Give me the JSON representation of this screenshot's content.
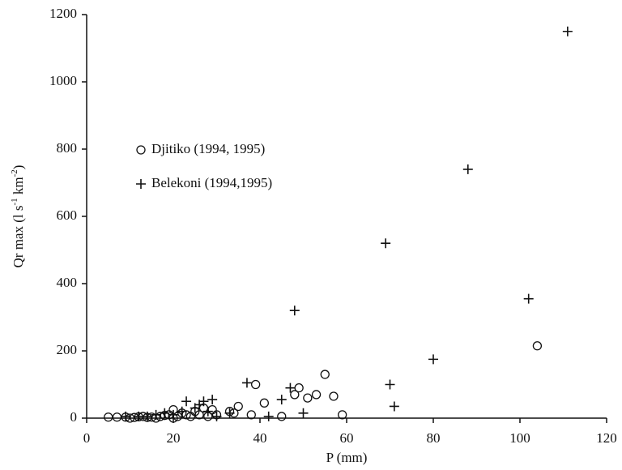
{
  "chart_data": {
    "type": "scatter",
    "xlabel": "P (mm)",
    "ylabel": [
      "Qr max (l s",
      "-1",
      " km",
      "-2",
      ")"
    ],
    "xlim": [
      0,
      120
    ],
    "xticks": [
      0,
      20,
      40,
      60,
      80,
      100,
      120
    ],
    "ylim": [
      0,
      1200
    ],
    "yticks": [
      0,
      200,
      400,
      600,
      800,
      1000,
      1200
    ],
    "series": [
      {
        "name": "Djitiko (1994, 1995)",
        "marker": "circle",
        "color": "#111",
        "x": [
          5,
          7,
          9,
          10,
          11,
          12,
          13,
          14,
          15,
          16,
          17,
          18,
          19,
          20,
          20,
          21,
          22,
          23,
          24,
          25,
          26,
          27,
          28,
          29,
          30,
          33,
          34,
          35,
          38,
          39,
          41,
          45,
          48,
          49,
          51,
          53,
          55,
          57,
          59,
          104
        ],
        "values": [
          3,
          3,
          3,
          0,
          2,
          4,
          5,
          2,
          3,
          0,
          5,
          8,
          10,
          25,
          0,
          5,
          15,
          10,
          5,
          20,
          10,
          30,
          5,
          25,
          10,
          20,
          15,
          35,
          10,
          100,
          45,
          5,
          70,
          90,
          60,
          70,
          130,
          65,
          10,
          215
        ]
      },
      {
        "name": "Belekoni (1994,1995)",
        "marker": "plus",
        "color": "#111",
        "x": [
          9,
          12,
          14,
          16,
          18,
          20,
          22,
          23,
          25,
          26,
          27,
          28,
          29,
          30,
          33,
          37,
          42,
          45,
          47,
          48,
          50,
          69,
          70,
          71,
          80,
          88,
          102,
          111
        ],
        "values": [
          5,
          5,
          5,
          10,
          15,
          10,
          20,
          50,
          30,
          40,
          50,
          20,
          55,
          5,
          15,
          105,
          5,
          55,
          90,
          320,
          15,
          520,
          100,
          35,
          175,
          740,
          355,
          1150
        ]
      }
    ]
  }
}
